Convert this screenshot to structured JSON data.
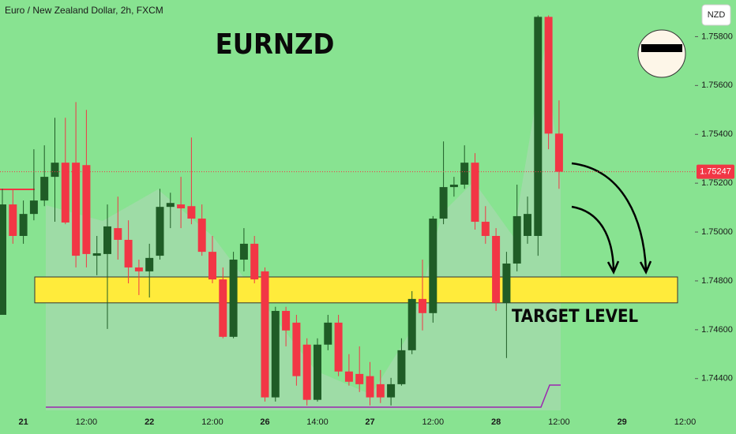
{
  "chart_data": {
    "type": "candlestick",
    "title": "EURNZD",
    "subtitle": "Euro / New Zealand Dollar, 2h, FXCM",
    "currency": "NZD",
    "up_color": "#1f5c26",
    "down_color": "#f23645",
    "categories": [
      null,
      null,
      "21",
      null,
      null,
      null,
      null,
      null,
      "12:00",
      null,
      null,
      null,
      null,
      null,
      "22",
      null,
      null,
      null,
      null,
      null,
      "12:00",
      null,
      null,
      null,
      null,
      "26",
      null,
      null,
      null,
      null,
      "14:00",
      null,
      null,
      null,
      null,
      "27",
      null,
      null,
      null,
      null,
      null,
      "12:00",
      null,
      null,
      null,
      null,
      null,
      "28",
      null,
      null,
      null,
      null,
      null,
      "12:00",
      null,
      null,
      null,
      null,
      null,
      "29",
      null,
      null,
      null,
      null,
      null,
      "12:00"
    ],
    "open": [
      1.74661,
      1.75113,
      1.74984,
      1.75074,
      1.75129,
      1.75226,
      1.75284,
      1.75284,
      1.75274,
      1.74903,
      1.7491,
      1.75016,
      1.74968,
      1.74855,
      1.74839,
      1.74903,
      1.75103,
      1.75113,
      1.75106,
      1.75055,
      1.74919,
      1.74806,
      1.74571,
      1.74887,
      1.74952,
      1.74839,
      1.74323,
      1.74677,
      1.74629,
      1.74539,
      1.74313,
      1.74539,
      1.74629,
      1.74429,
      1.74419,
      1.7441,
      1.74377,
      1.74323,
      1.74377,
      1.74516,
      1.74726,
      1.74668,
      1.75055,
      1.75184,
      1.75194,
      1.75284,
      1.75042,
      1.74984,
      1.7471,
      1.74871,
      1.74984,
      1.74984,
      1.75881,
      1.75403,
      null,
      null,
      null,
      null,
      null,
      null,
      null,
      null,
      null,
      null,
      null,
      null
    ],
    "high": [
      1.75177,
      1.75177,
      1.75129,
      1.75339,
      1.75355,
      1.75468,
      1.75468,
      1.75532,
      1.755,
      1.74984,
      1.75113,
      1.75145,
      1.75048,
      1.74887,
      1.74952,
      1.75177,
      1.75161,
      1.75226,
      1.75387,
      1.75113,
      1.74984,
      1.74855,
      1.74919,
      1.75016,
      1.74984,
      1.74855,
      1.74694,
      1.74694,
      1.74661,
      1.74565,
      1.74565,
      1.74661,
      1.74661,
      1.745,
      1.74532,
      1.74468,
      1.74435,
      1.74403,
      1.74565,
      1.74758,
      1.74887,
      1.75065,
      1.75371,
      1.75226,
      1.75355,
      1.75323,
      1.75106,
      1.75016,
      1.74919,
      1.75194,
      1.75145,
      1.75887,
      1.75887,
      1.75539,
      null,
      null,
      null,
      null,
      null,
      null,
      null,
      null,
      null,
      null,
      null,
      null
    ],
    "low": [
      1.74661,
      1.74952,
      1.74952,
      1.75048,
      1.75106,
      1.75042,
      1.75032,
      1.74855,
      1.74855,
      1.74823,
      1.74603,
      1.74887,
      1.7479,
      1.74742,
      1.74732,
      1.74887,
      1.75016,
      1.75016,
      1.75032,
      1.74903,
      1.7479,
      1.74565,
      1.74565,
      1.74839,
      1.7479,
      1.74306,
      1.74306,
      1.74532,
      1.74371,
      1.7429,
      1.74306,
      1.74516,
      1.7441,
      1.74371,
      1.74345,
      1.7429,
      1.743,
      1.7429,
      1.74371,
      1.745,
      1.74597,
      1.74629,
      1.75032,
      1.75145,
      1.75177,
      1.7501,
      1.74952,
      1.74677,
      1.74484,
      1.74839,
      1.74952,
      1.74903,
      1.75339,
      1.75177,
      null,
      null,
      null,
      null,
      null,
      null,
      null,
      null,
      null,
      null,
      null,
      null
    ],
    "close": [
      1.75113,
      1.74984,
      1.75074,
      1.75129,
      1.75226,
      1.75284,
      1.75039,
      1.74903,
      1.7491,
      1.74913,
      1.75023,
      1.74968,
      1.74855,
      1.74839,
      1.74894,
      1.75103,
      1.75119,
      1.75097,
      1.75055,
      1.74919,
      1.74806,
      1.74571,
      1.74887,
      1.74952,
      1.74806,
      1.74323,
      1.74677,
      1.74597,
      1.7441,
      1.74313,
      1.74539,
      1.74629,
      1.74429,
      1.74387,
      1.74377,
      1.74323,
      1.74323,
      1.74377,
      1.74516,
      1.74726,
      1.74668,
      1.75055,
      1.75184,
      1.75194,
      1.75284,
      1.75042,
      1.74984,
      1.7471,
      1.74871,
      1.75065,
      1.75074,
      1.75881,
      1.75403,
      1.75247,
      null,
      null,
      null,
      null,
      null,
      null,
      null,
      null,
      null,
      null,
      null,
      null
    ],
    "ylim": [
      1.7427,
      1.7595
    ],
    "yticks": [
      {
        "value": 1.744,
        "label": "1.74400"
      },
      {
        "value": 1.746,
        "label": "1.74600"
      },
      {
        "value": 1.748,
        "label": "1.74800"
      },
      {
        "value": 1.75,
        "label": "1.75000"
      },
      {
        "value": 1.752,
        "label": "1.75200"
      },
      {
        "value": 1.754,
        "label": "1.75400"
      },
      {
        "value": 1.756,
        "label": "1.75600"
      },
      {
        "value": 1.758,
        "label": "1.75800"
      }
    ],
    "last_price": {
      "value": 1.75247,
      "label": "1.75247"
    },
    "target_zone": {
      "label": "TARGET LEVEL",
      "range": [
        1.7471,
        1.74816
      ],
      "color": "#ffeb3b"
    }
  }
}
